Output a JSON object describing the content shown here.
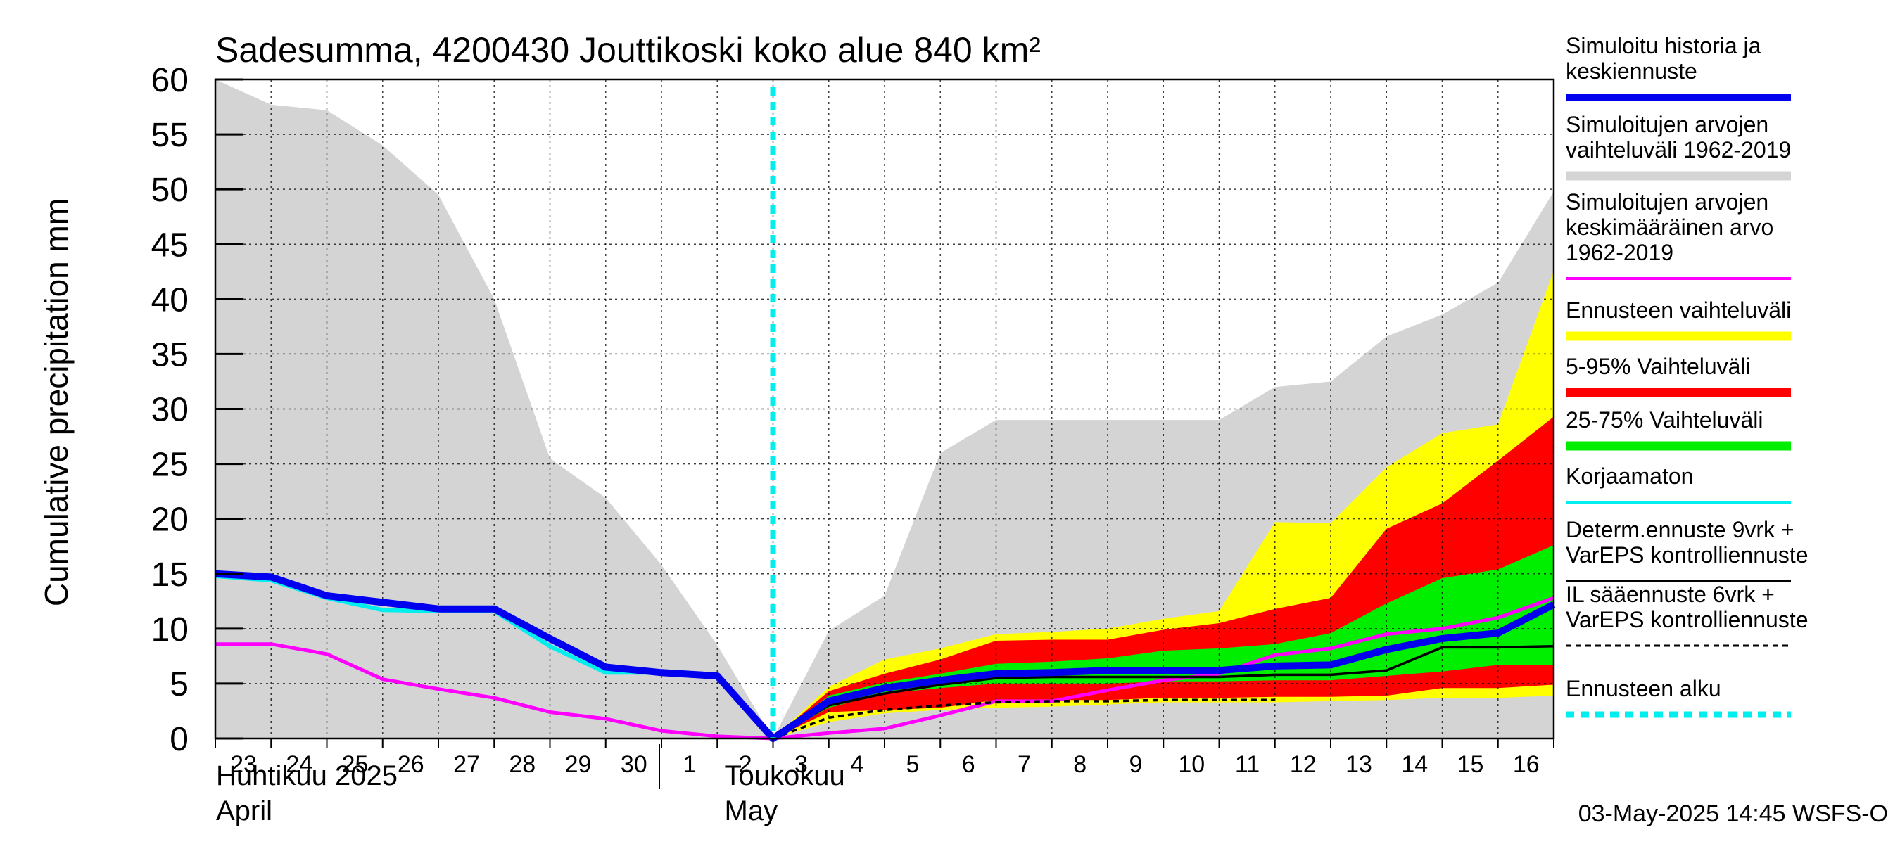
{
  "chart_data": {
    "type": "area",
    "title": "Sadesumma, 4200430 Jouttikoski koko alue 840 km²",
    "ylabel": "Cumulative precipitation    mm",
    "ylim": [
      0,
      60
    ],
    "yticks": [
      "0",
      "5",
      "10",
      "15",
      "20",
      "25",
      "30",
      "35",
      "40",
      "45",
      "50",
      "55",
      "60"
    ],
    "x_days": [
      23,
      24,
      25,
      26,
      27,
      28,
      29,
      30,
      31,
      32,
      33,
      34,
      35,
      36,
      37,
      38,
      39,
      40,
      41,
      42,
      43,
      44,
      45,
      46,
      47
    ],
    "x_tick_labels": [
      "23",
      "24",
      "25",
      "26",
      "27",
      "28",
      "29",
      "30",
      "1",
      "2",
      "3",
      "4",
      "5",
      "6",
      "7",
      "8",
      "9",
      "10",
      "11",
      "12",
      "13",
      "14",
      "15",
      "16"
    ],
    "month_labels": [
      {
        "fi": "Huhtikuu  2025",
        "en": "April"
      },
      {
        "fi": "Toukokuu",
        "en": "May"
      }
    ],
    "forecast_start_day": 33,
    "series": [
      {
        "name": "hist_range",
        "x": [
          23,
          24,
          25,
          26,
          27,
          28,
          29,
          30,
          31,
          32,
          33,
          34,
          35,
          36,
          37,
          38,
          39,
          40,
          41,
          42,
          43,
          44,
          45,
          46,
          47
        ],
        "lower": [
          0,
          0,
          0,
          0,
          0,
          0,
          0,
          0,
          0,
          0,
          0,
          0,
          0,
          0,
          0,
          0,
          0,
          0,
          0,
          0,
          0,
          0,
          0,
          0,
          0
        ],
        "upper": [
          60,
          57.7,
          57.2,
          54,
          49.5,
          40,
          25.5,
          21.9,
          15.8,
          8.5,
          0,
          9.8,
          13,
          26,
          29,
          29,
          29,
          29,
          29,
          32,
          32.5,
          36.6,
          38.6,
          41.5,
          49.8
        ]
      },
      {
        "name": "ens_range",
        "x": [
          33,
          34,
          35,
          36,
          37,
          38,
          39,
          40,
          41,
          42,
          43,
          44,
          45,
          46,
          47
        ],
        "lower": [
          0,
          1.5,
          2.3,
          2.6,
          2.8,
          2.9,
          3.1,
          3.3,
          3.3,
          3.3,
          3.4,
          3.5,
          3.7,
          3.7,
          3.9
        ],
        "upper": [
          0,
          4.7,
          7.2,
          8.2,
          9.5,
          9.7,
          10,
          10.9,
          11.6,
          19.7,
          19.6,
          24.7,
          27.8,
          28.6,
          42.6
        ]
      },
      {
        "name": "p5_95",
        "x": [
          33,
          34,
          35,
          36,
          37,
          38,
          39,
          40,
          41,
          42,
          43,
          44,
          45,
          46,
          47
        ],
        "lower": [
          0,
          2.4,
          2.6,
          2.8,
          3.5,
          3.5,
          3.5,
          3.7,
          3.7,
          3.8,
          3.8,
          3.9,
          4.6,
          4.6,
          4.9
        ],
        "upper": [
          0,
          4.3,
          5.9,
          7.2,
          8.9,
          9,
          9,
          9.9,
          10.5,
          11.8,
          12.8,
          19.1,
          21.4,
          25.3,
          29.3
        ]
      },
      {
        "name": "p25_75",
        "x": [
          33,
          34,
          35,
          36,
          37,
          38,
          39,
          40,
          41,
          42,
          43,
          44,
          45,
          46,
          47
        ],
        "lower": [
          0,
          2.8,
          4.1,
          4.6,
          5,
          5,
          5,
          5.2,
          5.2,
          5.3,
          5.3,
          5.7,
          6.1,
          6.7,
          6.7
        ],
        "upper": [
          0,
          3.9,
          5.1,
          5.9,
          6.8,
          7,
          7.3,
          8,
          8.2,
          8.6,
          9.6,
          12.3,
          14.6,
          15.4,
          17.6
        ]
      },
      {
        "name": "sim_mean",
        "x": [
          23,
          24,
          25,
          26,
          27,
          28,
          29,
          30,
          31,
          32,
          33,
          34,
          35,
          36,
          37,
          38,
          39,
          40,
          41,
          42,
          43,
          44,
          45,
          46,
          47
        ],
        "values": [
          8.6,
          8.6,
          7.7,
          5.4,
          4.5,
          3.7,
          2.4,
          1.8,
          0.7,
          0.2,
          0,
          0.5,
          0.9,
          2.1,
          3.4,
          3.4,
          4.4,
          5.3,
          5.9,
          7.6,
          8.2,
          9.5,
          10,
          11,
          12.8
        ]
      },
      {
        "name": "korjaamaton",
        "x": [
          23,
          24,
          25,
          26,
          27,
          28,
          29,
          30,
          31,
          32,
          33
        ],
        "values": [
          14.8,
          14.4,
          12.8,
          11.7,
          11.6,
          11.6,
          8.4,
          6,
          6,
          5.7,
          0
        ]
      },
      {
        "name": "determ",
        "x": [
          33,
          34,
          35,
          36,
          37,
          38,
          39,
          40,
          41,
          42,
          43,
          44,
          45,
          46,
          47
        ],
        "values": [
          0,
          3,
          4.1,
          4.9,
          5.5,
          5.6,
          5.6,
          5.6,
          5.6,
          5.8,
          5.8,
          6.2,
          8.3,
          8.3,
          8.4
        ]
      },
      {
        "name": "il_ennuste",
        "x": [
          33,
          34,
          35,
          36,
          37,
          38,
          39,
          40,
          41,
          42
        ],
        "values": [
          0,
          1.9,
          2.6,
          3,
          3.3,
          3.4,
          3.4,
          3.5,
          3.5,
          3.5
        ]
      },
      {
        "name": "sim_history_main",
        "x": [
          23,
          24,
          25,
          26,
          27,
          28,
          29,
          30,
          31,
          32,
          33,
          34,
          35,
          36,
          37,
          38,
          39,
          40,
          41,
          42,
          43,
          44,
          45,
          46,
          47
        ],
        "values": [
          15,
          14.7,
          13,
          12.4,
          11.8,
          11.8,
          9.1,
          6.5,
          6,
          5.7,
          0,
          3.4,
          4.6,
          5.3,
          5.9,
          6,
          6.2,
          6.2,
          6.2,
          6.6,
          6.7,
          8.1,
          9.1,
          9.6,
          12.2
        ]
      }
    ],
    "legend": [
      {
        "label": "Simuloitu historia ja keskiennuste",
        "lines": [
          "Simuloitu historia ja",
          "keskiennuste"
        ],
        "color": "#0000ee",
        "style": "thick"
      },
      {
        "label": "Simuloitujen arvojen vaihteluväli 1962-2019",
        "lines": [
          "Simuloitujen arvojen",
          "vaihteluväli 1962-2019"
        ],
        "color": "#d4d4d4",
        "style": "band"
      },
      {
        "label": "Simuloitujen arvojen keskimääräinen arvo 1962-2019",
        "lines": [
          "Simuloitujen arvojen",
          "keskimääräinen arvo",
          "   1962-2019"
        ],
        "color": "#ff00ff",
        "style": "line"
      },
      {
        "label": "Ennusteen vaihteluväli",
        "lines": [
          "Ennusteen vaihteluväli"
        ],
        "color": "#ffff00",
        "style": "band"
      },
      {
        "label": "5-95% Vaihteluväli",
        "lines": [
          "5-95% Vaihteluväli"
        ],
        "color": "#ff0000",
        "style": "band"
      },
      {
        "label": "25-75% Vaihteluväli",
        "lines": [
          "25-75% Vaihteluväli"
        ],
        "color": "#00ee00",
        "style": "band"
      },
      {
        "label": "Korjaamaton",
        "lines": [
          "Korjaamaton"
        ],
        "color": "#00eeee",
        "style": "line"
      },
      {
        "label": "Determ.ennuste 9vrk + VarEPS kontrolliennuste",
        "lines": [
          "Determ.ennuste 9vrk +",
          "VarEPS kontrolliennuste"
        ],
        "color": "#000000",
        "style": "line"
      },
      {
        "label": "IL sääennuste 6vrk + VarEPS kontrolliennuste",
        "lines": [
          "IL sääennuste 6vrk  +",
          "  VarEPS kontrolliennuste"
        ],
        "color": "#000000",
        "style": "dashed"
      },
      {
        "label": "Ennusteen alku",
        "lines": [
          "Ennusteen alku"
        ],
        "color": "#00eeee",
        "style": "dotted"
      }
    ],
    "footer": "03-May-2025 14:45 WSFS-O"
  }
}
